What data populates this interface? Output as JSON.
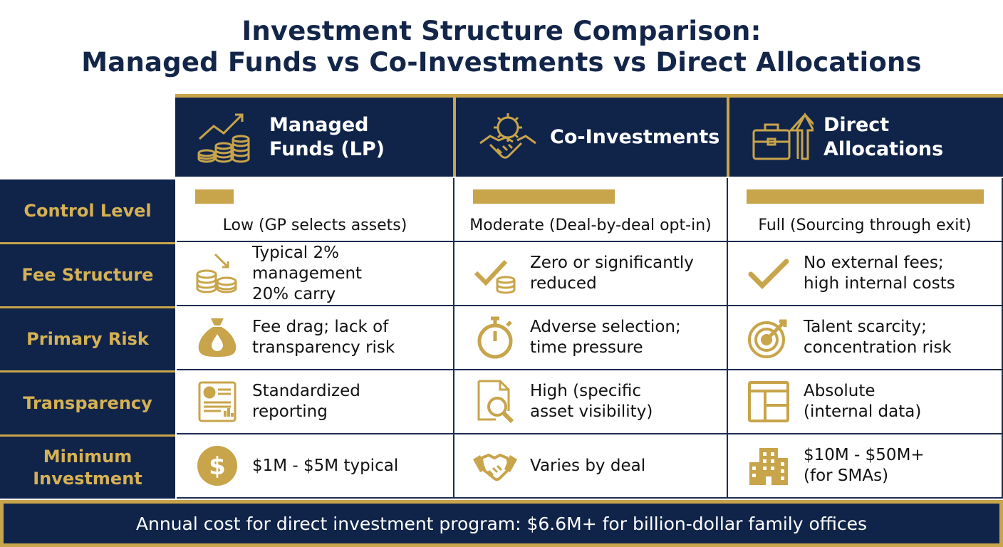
{
  "title_line1": "Investment Structure Comparison:",
  "title_line2": "Managed Funds vs Co-Investments vs Direct Allocations",
  "columns": [
    {
      "line1": "Managed",
      "line2": "Funds (LP)",
      "icon": "growth-coins-icon"
    },
    {
      "line1": "Co-Investments",
      "line2": "",
      "icon": "gear-handshake-icon"
    },
    {
      "line1": "Direct",
      "line2": "Allocations",
      "icon": "briefcase-arrow-icon"
    }
  ],
  "rows": [
    {
      "label": "Control Level",
      "cells": [
        {
          "text": "Low (GP selects assets)",
          "level": 0.17
        },
        {
          "text": "Moderate (Deal-by-deal opt-in)",
          "level": 0.53
        },
        {
          "text": "Full (Sourcing through exit)",
          "level": 0.9
        }
      ]
    },
    {
      "label": "Fee Structure",
      "cells": [
        {
          "line1": "Typical 2% management",
          "line2": "20% carry",
          "icon": "coins-down-arrow-icon"
        },
        {
          "line1": "Zero or significantly",
          "line2": "reduced",
          "icon": "check-coins-icon"
        },
        {
          "line1": "No external fees;",
          "line2": "high internal costs",
          "icon": "check-icon"
        }
      ]
    },
    {
      "label": "Primary Risk",
      "cells": [
        {
          "line1": "Fee drag; lack of",
          "line2": "transparency risk",
          "icon": "money-bag-icon"
        },
        {
          "line1": "Adverse selection;",
          "line2": "time pressure",
          "icon": "stopwatch-icon"
        },
        {
          "line1": "Talent scarcity;",
          "line2": "concentration risk",
          "icon": "target-icon"
        }
      ]
    },
    {
      "label": "Transparency",
      "cells": [
        {
          "line1": "Standardized",
          "line2": "reporting",
          "icon": "report-icon"
        },
        {
          "line1": "High (specific",
          "line2": "asset visibility)",
          "icon": "document-search-icon"
        },
        {
          "line1": "Absolute",
          "line2": "(internal data)",
          "icon": "dashboard-layout-icon"
        }
      ]
    },
    {
      "label_line1": "Minimum",
      "label_line2": "Investment",
      "cells": [
        {
          "line1": "$1M - $5M typical",
          "line2": "",
          "icon": "dollar-coin-icon"
        },
        {
          "line1": "Varies by deal",
          "line2": "",
          "icon": "handshake-icon"
        },
        {
          "line1": "$10M - $50M+",
          "line2": "(for SMAs)",
          "icon": "building-icon"
        }
      ]
    }
  ],
  "footer": "Annual cost for direct investment program: $6.6M+ for billion-dollar family offices",
  "colors": {
    "navy": "#10244a",
    "gold": "#c8a44a",
    "label_gold": "#d6b154"
  }
}
